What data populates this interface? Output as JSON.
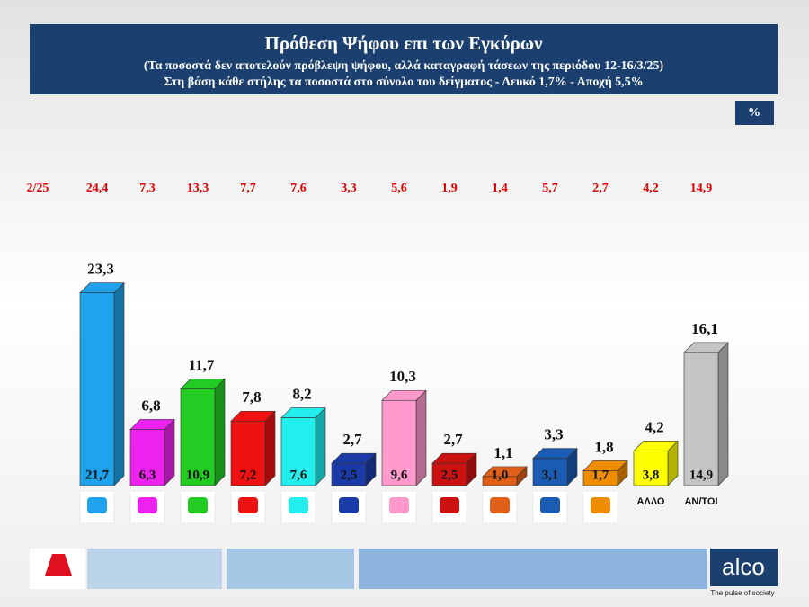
{
  "chart_data": {
    "type": "bar3d",
    "title": "Πρόθεση Ψήφου επι των Εγκύρων",
    "subtitle": [
      "(Τα ποσοστά δεν αποτελούν πρόβλεψη ψήφου, αλλά καταγραφή τάσεων της περιόδου  12-16/3/25)",
      "Στη βάση κάθε στήλης τα ποσοστά στο σύνολο του δείγματος - Λευκό 1,7% - Αποχή 5,5%"
    ],
    "unit": "%",
    "categories": [
      null,
      null,
      null,
      null,
      null,
      null,
      null,
      null,
      null,
      null,
      null,
      "ΑΛΛΟ",
      "ΑΝ/ΤΟΙ"
    ],
    "colors": [
      "#1ea3ec",
      "#ee22ee",
      "#22cc22",
      "#ee1111",
      "#22eeee",
      "#1a3aa8",
      "#ff99cc",
      "#cc1111",
      "#e0601a",
      "#1a5cb4",
      "#f08c00",
      "#ffff00",
      "#c4c4c4"
    ],
    "series": [
      {
        "values": [
          23.3,
          6.8,
          11.7,
          7.8,
          8.2,
          2.7,
          10.3,
          2.7,
          1.1,
          3.3,
          1.8,
          4.2,
          16.1
        ],
        "value_labels": [
          "23,3",
          "6,8",
          "11,7",
          "7,8",
          "8,2",
          "2,7",
          "10,3",
          "2,7",
          "1,1",
          "3,3",
          "1,8",
          "4,2",
          "16,1"
        ]
      },
      {
        "values": [
          21.7,
          6.3,
          10.9,
          7.2,
          7.6,
          2.5,
          9.6,
          2.5,
          1.0,
          3.1,
          1.7,
          3.8,
          14.9
        ],
        "value_labels": [
          "21,7",
          "6,3",
          "10,9",
          "7,2",
          "7,6",
          "2,5",
          "9,6",
          "2,5",
          "1,0",
          "3,1",
          "1,7",
          "3,8",
          "14,9"
        ]
      },
      {
        "name": "2/25",
        "color": "#e00000",
        "values": [
          24.4,
          7.3,
          13.3,
          7.7,
          7.6,
          3.3,
          5.6,
          1.9,
          1.4,
          5.7,
          2.7,
          4.2,
          14.9
        ],
        "value_labels": [
          "24,4",
          "7,3",
          "13,3",
          "7,7",
          "7,6",
          "3,3",
          "5,6",
          "1,9",
          "1,4",
          "5,7",
          "2,7",
          "4,2",
          "14,9"
        ]
      }
    ],
    "footer": {
      "brand": "alco",
      "tagline": "The pulse of society"
    }
  }
}
